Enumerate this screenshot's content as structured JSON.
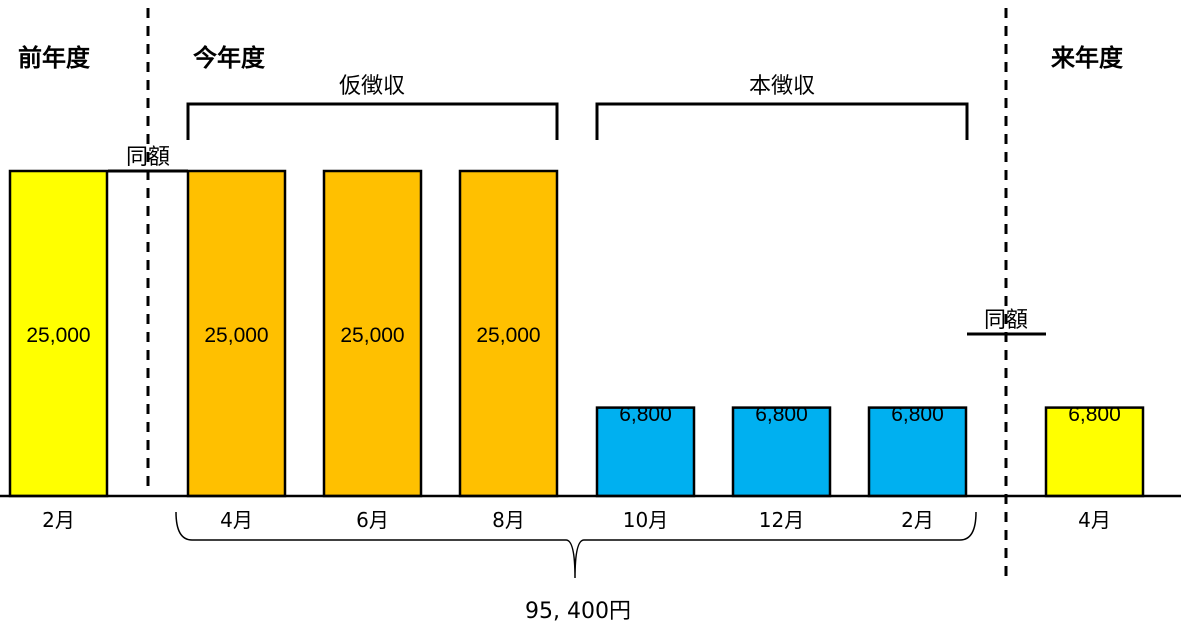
{
  "chart_data": {
    "type": "bar",
    "headers": {
      "previous_year": "前年度",
      "this_year": "今年度",
      "next_year": "来年度"
    },
    "groups": {
      "provisional": "仮徴収",
      "main": "本徴収"
    },
    "same_amount_label": "同額",
    "categories": [
      "2月",
      "4月",
      "6月",
      "8月",
      "10月",
      "12月",
      "2月",
      "4月"
    ],
    "values": [
      25000,
      25000,
      25000,
      25000,
      6800,
      6800,
      6800,
      6800
    ],
    "value_labels": [
      "25,000",
      "25,000",
      "25,000",
      "25,000",
      "6,800",
      "6,800",
      "6,800",
      "6,800"
    ],
    "bar_colors": [
      "#FFFF00",
      "#FFC000",
      "#FFC000",
      "#FFC000",
      "#00B0F0",
      "#00B0F0",
      "#00B0F0",
      "#FFFF00"
    ],
    "total_label": "95, 400円",
    "ylim": [
      0,
      25000
    ]
  }
}
